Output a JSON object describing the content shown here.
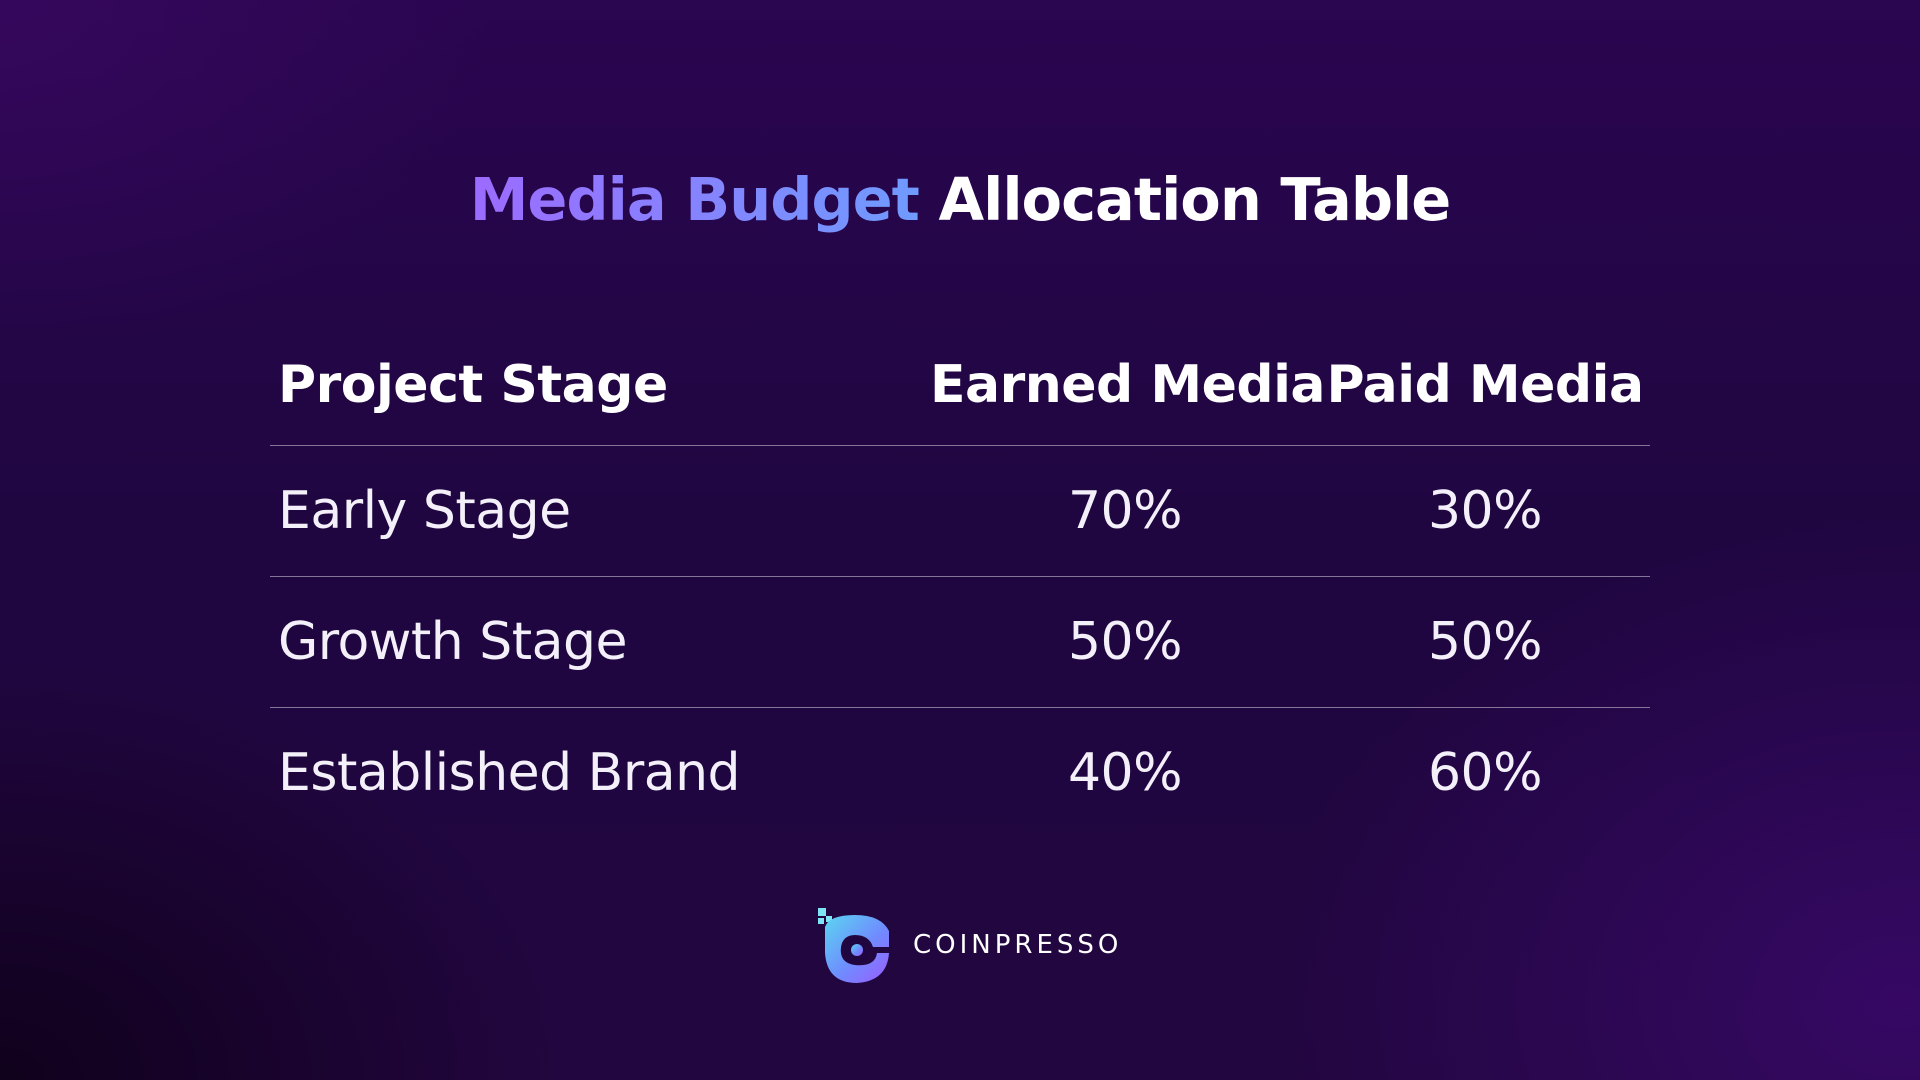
{
  "title": {
    "accent": "Media Budget",
    "rest": "Allocation Table"
  },
  "table": {
    "headers": [
      "Project Stage",
      "Earned Media",
      "Paid Media"
    ],
    "rows": [
      [
        "Early Stage",
        "70%",
        "30%"
      ],
      [
        "Growth Stage",
        "50%",
        "50%"
      ],
      [
        "Established Brand",
        "40%",
        "60%"
      ]
    ]
  },
  "brand": {
    "name": "COINPRESSO",
    "icon": "coinpresso-logo-icon"
  },
  "colors": {
    "background": "#22063f",
    "accent_start": "#9c6bff",
    "accent_end": "#6f9bff",
    "text": "#ffffff"
  }
}
